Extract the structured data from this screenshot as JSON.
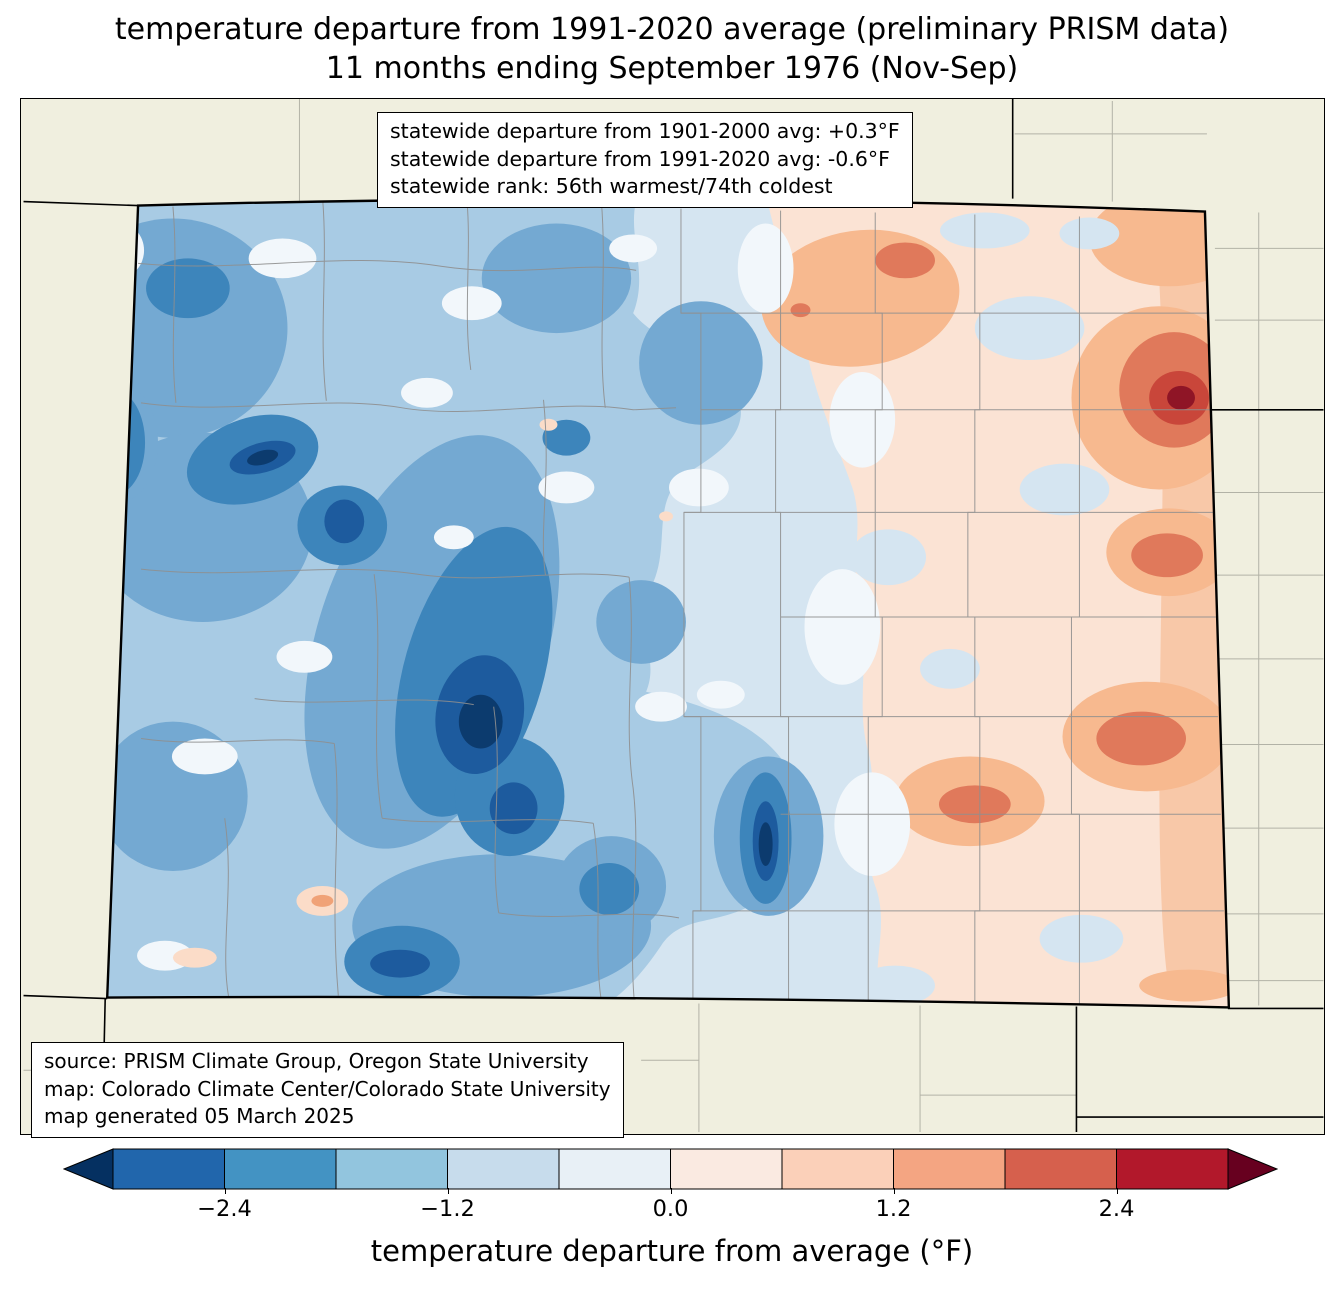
{
  "title": {
    "line1": "temperature departure from 1991-2020 average (preliminary PRISM data)",
    "line2": "11 months ending September 1976 (Nov-Sep)"
  },
  "stats_box": {
    "line1": "statewide departure from 1901-2000 avg: +0.3°F",
    "line2": "statewide departure from 1991-2020 avg: -0.6°F",
    "line3": "statewide rank: 56th warmest/74th coldest"
  },
  "source_box": {
    "line1": "source: PRISM Climate Group, Oregon State University",
    "line2": "map: Colorado Climate Center/Colorado State University",
    "line3": "map generated 05 March 2025"
  },
  "map": {
    "region": "Colorado",
    "background_color": "#f0efdf",
    "county_line_color": "#8f8f8f",
    "state_line_color": "#000000"
  },
  "colorbar": {
    "label": "temperature departure from average (°F)",
    "ticks": [
      "−2.4",
      "−1.2",
      "0.0",
      "1.2",
      "2.4"
    ],
    "tick_values": [
      -2.4,
      -1.2,
      0.0,
      1.2,
      2.4
    ],
    "range": [
      -3.0,
      3.0
    ],
    "units": "°F",
    "segment_colors": [
      "#2166ac",
      "#4393c3",
      "#92c5de",
      "#c7dcec",
      "#e8f0f6",
      "#faeae1",
      "#fbd0b9",
      "#f4a582",
      "#d6604d",
      "#b2182b"
    ],
    "under_color": "#053061",
    "over_color": "#67001f"
  }
}
